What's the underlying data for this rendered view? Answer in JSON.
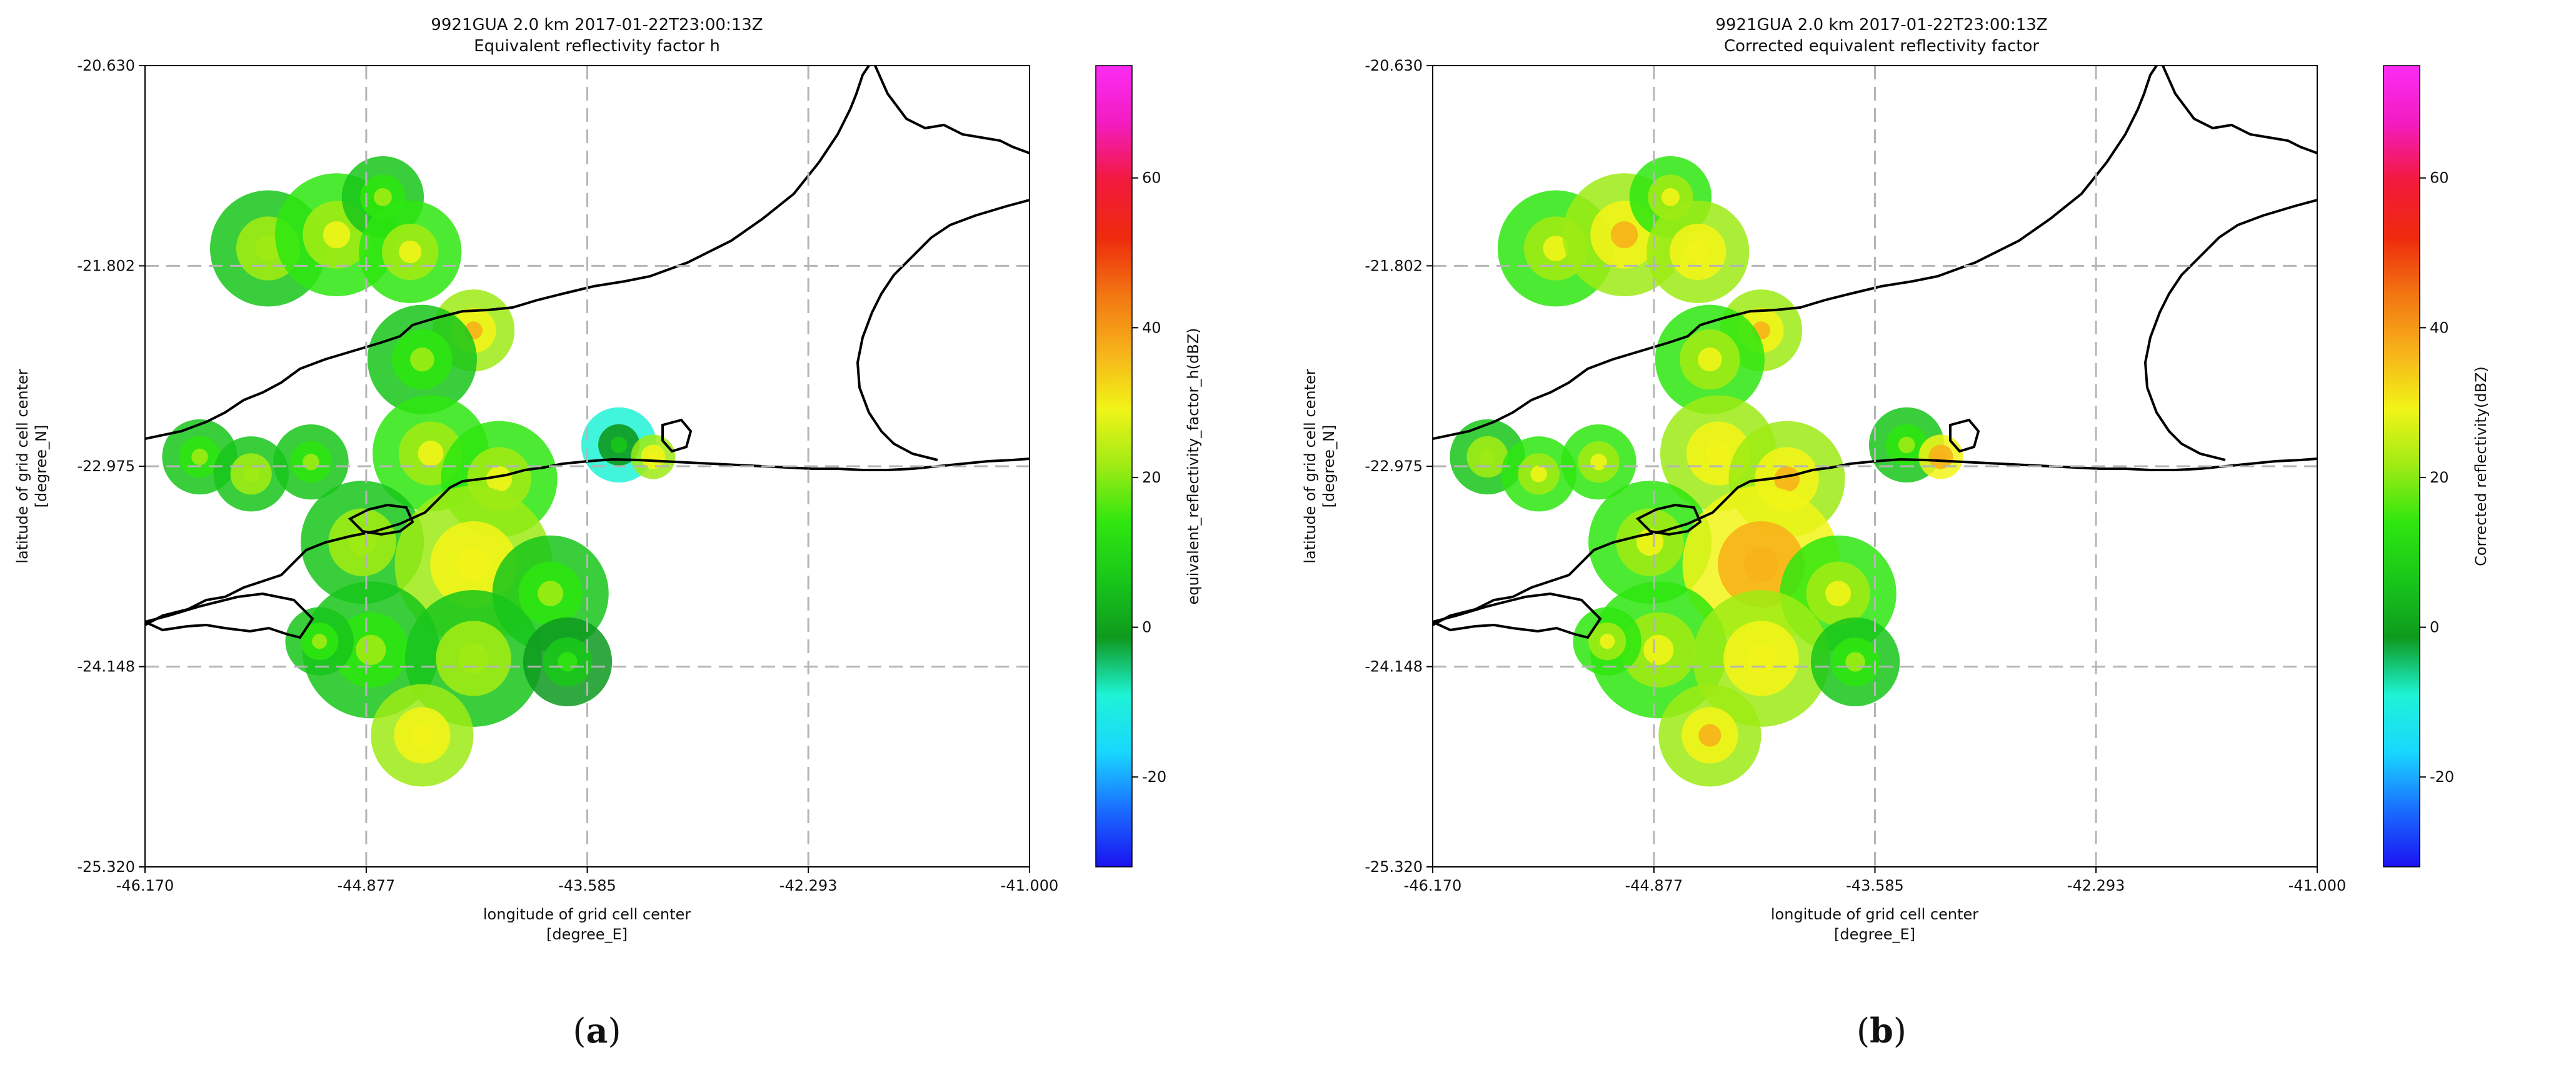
{
  "figure": {
    "panel_a_caption": {
      "open": "(",
      "letter": "a",
      "close": ")"
    },
    "panel_b_caption": {
      "open": "(",
      "letter": "b",
      "close": ")"
    }
  },
  "colors": {
    "cmap": [
      "#1a12f0",
      "#1a6dff",
      "#19d7ff",
      "#1ef3d6",
      "#0e9a1e",
      "#18c61a",
      "#2ee60f",
      "#9eeb14",
      "#f1f418",
      "#f7b21a",
      "#f27612",
      "#ee2a0d",
      "#f21a3d",
      "#f21cc1",
      "#fb2cf4"
    ],
    "coastline": "#000000",
    "gridline": "#b5b5b5"
  },
  "chart_data": [
    {
      "type": "heatmap",
      "title": "9921GUA 2.0 km 2017-01-22T23:00:13Z",
      "subtitle": "Equivalent reflectivity factor h",
      "xlabel": "longitude of grid cell center",
      "xunit": "[degree_E]",
      "ylabel": "latitude of grid cell center",
      "yunit": "[degree_N]",
      "xlim": [
        -46.17,
        -41.0
      ],
      "ylim": [
        -25.32,
        -20.63
      ],
      "xticks": [
        "-46.170",
        "-44.877",
        "-43.585",
        "-42.293",
        "-41.000"
      ],
      "xtick_values": [
        -46.17,
        -44.877,
        -43.585,
        -42.293,
        -41.0
      ],
      "yticks": [
        "-20.630",
        "-21.802",
        "-22.975",
        "-24.148",
        "-25.320"
      ],
      "ytick_values": [
        -20.63,
        -21.802,
        -22.975,
        -24.148,
        -25.32
      ],
      "grid": true,
      "colorbar": {
        "label": "equivalent_reflectivity_factor_h(dBZ)",
        "range": [
          -32,
          75
        ],
        "ticks": [
          "-20",
          "0",
          "20",
          "40",
          "60"
        ],
        "tick_values": [
          -20,
          0,
          20,
          40,
          60
        ]
      },
      "echo_cells": [
        {
          "lon": -45.45,
          "lat": -21.7,
          "dbz": 18,
          "r": 0.34
        },
        {
          "lon": -45.05,
          "lat": -21.62,
          "dbz": 22,
          "r": 0.36
        },
        {
          "lon": -44.78,
          "lat": -21.4,
          "dbz": 16,
          "r": 0.24
        },
        {
          "lon": -44.62,
          "lat": -21.72,
          "dbz": 20,
          "r": 0.3
        },
        {
          "lon": -44.25,
          "lat": -22.18,
          "dbz": 28,
          "r": 0.24
        },
        {
          "lon": -44.55,
          "lat": -22.35,
          "dbz": 14,
          "r": 0.32
        },
        {
          "lon": -45.85,
          "lat": -22.92,
          "dbz": 14,
          "r": 0.22
        },
        {
          "lon": -45.55,
          "lat": -23.02,
          "dbz": 18,
          "r": 0.22
        },
        {
          "lon": -45.2,
          "lat": -22.95,
          "dbz": 16,
          "r": 0.22
        },
        {
          "lon": -44.5,
          "lat": -22.9,
          "dbz": 20,
          "r": 0.34
        },
        {
          "lon": -44.1,
          "lat": -23.05,
          "dbz": 24,
          "r": 0.34
        },
        {
          "lon": -43.4,
          "lat": -22.85,
          "dbz": 2,
          "r": 0.22
        },
        {
          "lon": -43.2,
          "lat": -22.92,
          "dbz": 26,
          "r": 0.13
        },
        {
          "lon": -44.9,
          "lat": -23.42,
          "dbz": 18,
          "r": 0.36
        },
        {
          "lon": -44.25,
          "lat": -23.55,
          "dbz": 26,
          "r": 0.46
        },
        {
          "lon": -43.8,
          "lat": -23.72,
          "dbz": 14,
          "r": 0.34
        },
        {
          "lon": -44.85,
          "lat": -24.05,
          "dbz": 16,
          "r": 0.4
        },
        {
          "lon": -44.25,
          "lat": -24.1,
          "dbz": 18,
          "r": 0.4
        },
        {
          "lon": -43.7,
          "lat": -24.12,
          "dbz": 6,
          "r": 0.26
        },
        {
          "lon": -44.55,
          "lat": -24.55,
          "dbz": 26,
          "r": 0.3
        },
        {
          "lon": -45.15,
          "lat": -24.0,
          "dbz": 16,
          "r": 0.2
        }
      ]
    },
    {
      "type": "heatmap",
      "title": "9921GUA 2.0 km 2017-01-22T23:00:13Z",
      "subtitle": "Corrected equivalent reflectivity factor",
      "xlabel": "longitude of grid cell center",
      "xunit": "[degree_E]",
      "ylabel": "latitude of grid cell center",
      "yunit": "[degree_N]",
      "xlim": [
        -46.17,
        -41.0
      ],
      "ylim": [
        -25.32,
        -20.63
      ],
      "xticks": [
        "-46.170",
        "-44.877",
        "-43.585",
        "-42.293",
        "-41.000"
      ],
      "xtick_values": [
        -46.17,
        -44.877,
        -43.585,
        -42.293,
        -41.0
      ],
      "yticks": [
        "-20.630",
        "-21.802",
        "-22.975",
        "-24.148",
        "-25.320"
      ],
      "ytick_values": [
        -20.63,
        -21.802,
        -22.975,
        -24.148,
        -25.32
      ],
      "grid": true,
      "colorbar": {
        "label": "Corrected reflectivity(dBZ)",
        "range": [
          -32,
          75
        ],
        "ticks": [
          "-20",
          "0",
          "20",
          "40",
          "60"
        ],
        "tick_values": [
          -20,
          0,
          20,
          40,
          60
        ]
      },
      "echo_cells": [
        {
          "lon": -45.45,
          "lat": -21.7,
          "dbz": 22,
          "r": 0.34
        },
        {
          "lon": -45.05,
          "lat": -21.62,
          "dbz": 28,
          "r": 0.36
        },
        {
          "lon": -44.78,
          "lat": -21.4,
          "dbz": 24,
          "r": 0.24
        },
        {
          "lon": -44.62,
          "lat": -21.72,
          "dbz": 26,
          "r": 0.3
        },
        {
          "lon": -44.25,
          "lat": -22.18,
          "dbz": 32,
          "r": 0.24
        },
        {
          "lon": -44.55,
          "lat": -22.35,
          "dbz": 20,
          "r": 0.32
        },
        {
          "lon": -45.85,
          "lat": -22.92,
          "dbz": 18,
          "r": 0.22
        },
        {
          "lon": -45.55,
          "lat": -23.02,
          "dbz": 24,
          "r": 0.22
        },
        {
          "lon": -45.2,
          "lat": -22.95,
          "dbz": 22,
          "r": 0.22
        },
        {
          "lon": -44.5,
          "lat": -22.9,
          "dbz": 26,
          "r": 0.34
        },
        {
          "lon": -44.1,
          "lat": -23.05,
          "dbz": 32,
          "r": 0.34
        },
        {
          "lon": -43.4,
          "lat": -22.85,
          "dbz": 12,
          "r": 0.22
        },
        {
          "lon": -43.2,
          "lat": -22.92,
          "dbz": 34,
          "r": 0.13
        },
        {
          "lon": -44.9,
          "lat": -23.42,
          "dbz": 24,
          "r": 0.36
        },
        {
          "lon": -44.25,
          "lat": -23.55,
          "dbz": 34,
          "r": 0.46
        },
        {
          "lon": -43.8,
          "lat": -23.72,
          "dbz": 22,
          "r": 0.34
        },
        {
          "lon": -44.85,
          "lat": -24.05,
          "dbz": 22,
          "r": 0.4
        },
        {
          "lon": -44.25,
          "lat": -24.1,
          "dbz": 26,
          "r": 0.4
        },
        {
          "lon": -43.7,
          "lat": -24.12,
          "dbz": 14,
          "r": 0.26
        },
        {
          "lon": -44.55,
          "lat": -24.55,
          "dbz": 32,
          "r": 0.3
        },
        {
          "lon": -45.15,
          "lat": -24.0,
          "dbz": 22,
          "r": 0.2
        }
      ]
    }
  ]
}
